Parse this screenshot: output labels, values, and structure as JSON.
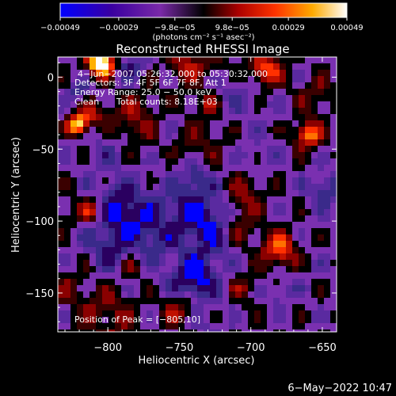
{
  "chart_data": {
    "type": "heatmap",
    "title": "Reconstructed RHESSI Image",
    "xlabel": "Heliocentric X (arcsec)",
    "ylabel": "Heliocentric Y (arcsec)",
    "xlim": [
      -835,
      -640
    ],
    "ylim": [
      -177,
      14
    ],
    "x_ticks": [
      -800,
      -750,
      -700,
      -650
    ],
    "y_ticks": [
      0,
      -50,
      -100,
      -150
    ],
    "x_tick_labels": [
      "−800",
      "−750",
      "−700",
      "−650"
    ],
    "y_tick_labels": [
      "0",
      "−50",
      "−100",
      "−150"
    ],
    "colorbar": {
      "range": [
        -0.00049,
        0.00049
      ],
      "tick_values": [
        -0.00049,
        -0.00029,
        -9.8e-05,
        9.8e-05,
        0.00029,
        0.00049
      ],
      "tick_labels": [
        "−0.00049",
        "−0.00029",
        "−9.8e−05",
        "9.8e−05",
        "0.00029",
        "0.00049"
      ],
      "unit_label": "(photons cm⁻² s⁻¹ asec⁻²)"
    },
    "annotations": {
      "time_range": "4−Jun−2007 05:26:32.000 to 05:30:32.000",
      "detectors": "Detectors: 3F 4F 5F 6F 7F 8F, Att 1",
      "energy_range": "Energy Range: 25.0 − 50.0 keV",
      "method": "Clean",
      "total_counts": "Total counts: 8.18E+03",
      "peak_position": "Position of Peak = [−805,10]"
    },
    "peak": {
      "x": -805,
      "y": 10
    },
    "grid": false,
    "colormap": [
      "#0000ff",
      "#2a0060",
      "#3a2a8a",
      "#5a2aa0",
      "#7a30b0",
      "#000000",
      "#3a0000",
      "#8a0000",
      "#c01000",
      "#ff3000",
      "#ff7000",
      "#ffb000",
      "#ffe060",
      "#ffffff"
    ]
  },
  "footer": {
    "date": "6−May−2022 10:47"
  }
}
